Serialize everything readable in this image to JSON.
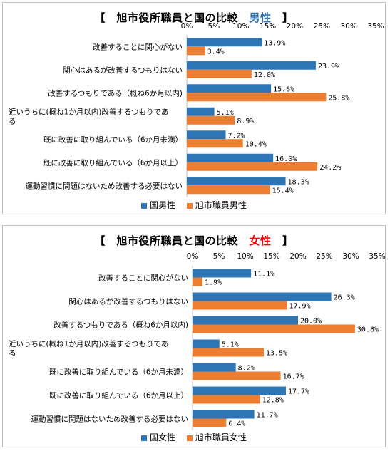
{
  "chart_data": [
    {
      "type": "bar",
      "orientation": "horizontal",
      "title_prefix": "【　旭市役所職員と国の比較　",
      "title_highlight": "男性",
      "title_suffix": "　】",
      "highlight_color": "#2e75b6",
      "categories": [
        "改善することに関心がない",
        "関心はあるが改善するつもりはない",
        "改善するつもりである（概ね6か月以内)",
        "近いうちに(概ね1か月以内)改善するつもりである",
        "既に改善に取り組んでいる（6か月未満）",
        "既に改善に取り組んでいる（6か月以上）",
        "運動習慣に問題はないため改善する必要はない"
      ],
      "category_lines": [
        [
          "改善することに関心がない"
        ],
        [
          "関心はあるが改善するつもりはない"
        ],
        [
          "改善するつもりである（概ね6か月以内)"
        ],
        [
          "近いうちに(概ね1か月以内)改善するつもりであ",
          "る"
        ],
        [
          "既に改善に取り組んでいる（6か月未満）"
        ],
        [
          "既に改善に取り組んでいる（6か月以上）"
        ],
        [
          "運動習慣に問題はないため改善する必要はない"
        ]
      ],
      "series": [
        {
          "name": "国男性",
          "color": "#2e75b6",
          "values": [
            13.9,
            23.9,
            15.6,
            5.1,
            7.2,
            16.0,
            18.3
          ]
        },
        {
          "name": "旭市職員男性",
          "color": "#ed7d31",
          "values": [
            3.4,
            12.0,
            25.8,
            8.9,
            10.4,
            24.2,
            15.4
          ]
        }
      ],
      "value_labels": [
        [
          "13.9%",
          "23.9%",
          "15.6%",
          "5.1%",
          "7.2%",
          "16.0%",
          "18.3%"
        ],
        [
          "3.4%",
          "12.0%",
          "25.8%",
          "8.9%",
          "10.4%",
          "24.2%",
          "15.4%"
        ]
      ],
      "xlim": [
        0,
        35
      ],
      "ticks": [
        0,
        5,
        10,
        15,
        20,
        25,
        30,
        35
      ],
      "tick_labels": [
        "0%",
        "5%",
        "10%",
        "15%",
        "20%",
        "25%",
        "30%",
        "35%"
      ],
      "axis_position": "top",
      "grid": false,
      "legend": "bottom"
    },
    {
      "type": "bar",
      "orientation": "horizontal",
      "title_prefix": "【　旭市役所職員と国の比較　",
      "title_highlight": "女性",
      "title_suffix": "　】",
      "highlight_color": "#ff0000",
      "categories": [
        "改善することに関心がない",
        "関心はあるが改善するつもりはない",
        "改善するつもりである（概ね6か月以内)",
        "近いうちに(概ね1か月以内)改善するつもりである",
        "既に改善に取り組んでいる（6か月未満）",
        "既に改善に取り組んでいる（6か月以上）",
        "運動習慣に問題はないため改善する必要はない"
      ],
      "category_lines": [
        [
          "改善することに関心がない"
        ],
        [
          "関心はあるが改善するつもりはない"
        ],
        [
          "改善するつもりである（概ね6か月以内)"
        ],
        [
          "近いうちに(概ね1か月以内)改善するつもりであ",
          "る"
        ],
        [
          "既に改善に取り組んでいる（6か月未満）"
        ],
        [
          "既に改善に取り組んでいる（6か月以上）"
        ],
        [
          "運動習慣に問題はないため改善する必要はない"
        ]
      ],
      "series": [
        {
          "name": "国女性",
          "color": "#2e75b6",
          "values": [
            11.1,
            26.3,
            20.0,
            5.1,
            8.2,
            17.7,
            11.7
          ]
        },
        {
          "name": "旭市職員女性",
          "color": "#ed7d31",
          "values": [
            1.9,
            17.9,
            30.8,
            13.5,
            16.7,
            12.8,
            6.4
          ]
        }
      ],
      "value_labels": [
        [
          "11.1%",
          "26.3%",
          "20.0%",
          "5.1%",
          "8.2%",
          "17.7%",
          "11.7%"
        ],
        [
          "1.9%",
          "17.9%",
          "30.8%",
          "13.5%",
          "16.7%",
          "12.8%",
          "6.4%"
        ]
      ],
      "xlim": [
        0,
        35
      ],
      "ticks": [
        0,
        5,
        10,
        15,
        20,
        25,
        30,
        35
      ],
      "tick_labels": [
        "0%",
        "5%",
        "10%",
        "15%",
        "20%",
        "25%",
        "30%",
        "35%"
      ],
      "axis_position": "top",
      "grid": false,
      "legend": "bottom"
    }
  ]
}
